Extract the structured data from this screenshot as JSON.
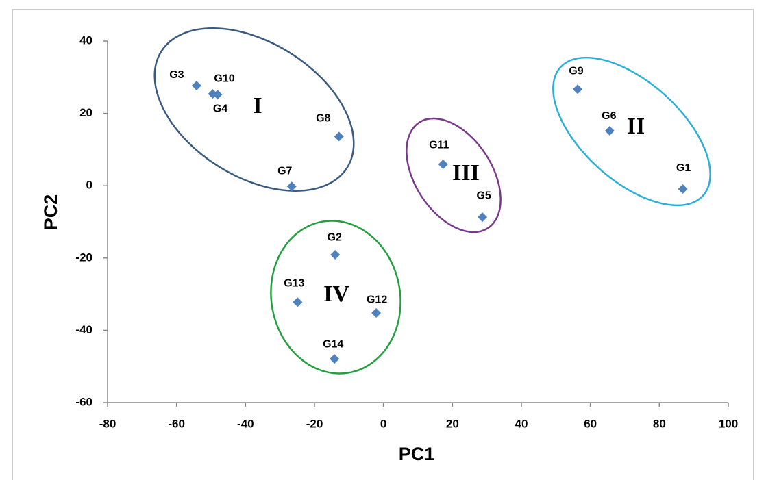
{
  "chart_data": {
    "type": "scatter",
    "x_label": "PC1",
    "y_label": "PC2",
    "point_labels": [
      "G3",
      "G10",
      "G4",
      "G8",
      "G7",
      "G11",
      "G5",
      "G9",
      "G6",
      "G1",
      "G2",
      "G13",
      "G12",
      "G14"
    ],
    "x": [
      -54.2,
      -49.5,
      -48.1,
      -12.9,
      -26.6,
      17.3,
      28.7,
      56.3,
      65.6,
      86.8,
      -14.0,
      -24.9,
      -2.1,
      -14.2
    ],
    "series": [
      {
        "color": "#4f81bd",
        "values": [
          27.7,
          25.4,
          25.2,
          13.6,
          -0.2,
          5.9,
          -8.7,
          26.7,
          15.2,
          -0.9,
          -19.1,
          -32.2,
          -35.2,
          -47.9
        ]
      }
    ],
    "annotations": [
      "I",
      "II",
      "III",
      "IV"
    ],
    "xlim": [
      -80,
      100
    ],
    "xticks": [
      -80,
      -60,
      -40,
      -20,
      0,
      20,
      40,
      60,
      80,
      100
    ],
    "ylim": [
      -60,
      40
    ],
    "yticks": [
      -60,
      -40,
      -20,
      0,
      20,
      40
    ],
    "grid": false
  }
}
